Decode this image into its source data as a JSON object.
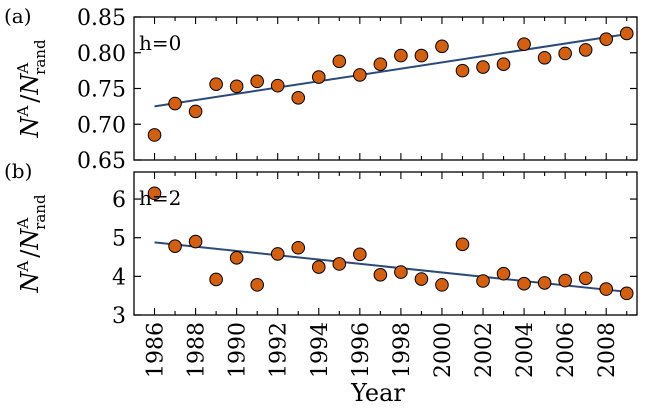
{
  "xlabel": "Year",
  "chart_data": [
    {
      "type": "scatter",
      "panel_label": "(a)",
      "annotation": "h=0",
      "ylabel": "N^A / N^A_rand",
      "ylabel_main": "N",
      "ylabel_sup": "A",
      "ylabel_slash": "/",
      "ylabel_main2": "N",
      "ylabel_sup2": "A",
      "ylabel_sub2": "rand",
      "xlim": [
        1985,
        2009.5
      ],
      "ylim": [
        0.65,
        0.85
      ],
      "yticks": [
        "0.65",
        "0.70",
        "0.75",
        "0.80",
        "0.85"
      ],
      "grid": false,
      "marker_color": "#d35f0f",
      "line_color": "#2b4a7a",
      "x": [
        1986,
        1987,
        1988,
        1989,
        1990,
        1991,
        1992,
        1993,
        1994,
        1995,
        1996,
        1997,
        1998,
        1999,
        2000,
        2001,
        2002,
        2003,
        2004,
        2005,
        2006,
        2007,
        2008,
        2009
      ],
      "y": [
        0.685,
        0.729,
        0.718,
        0.756,
        0.753,
        0.76,
        0.754,
        0.737,
        0.766,
        0.788,
        0.769,
        0.784,
        0.796,
        0.796,
        0.809,
        0.775,
        0.78,
        0.784,
        0.812,
        0.793,
        0.799,
        0.804,
        0.819,
        0.827
      ],
      "fit": {
        "x": [
          1986,
          2009
        ],
        "y": [
          0.725,
          0.826
        ]
      }
    },
    {
      "type": "scatter",
      "panel_label": "(b)",
      "annotation": "h=2",
      "ylabel": "N^A / N^A_rand",
      "ylabel_main": "N",
      "ylabel_sup": "A",
      "ylabel_slash": "/",
      "ylabel_main2": "N",
      "ylabel_sup2": "A",
      "ylabel_sub2": "rand",
      "xlim": [
        1985,
        2009.5
      ],
      "ylim": [
        3,
        6.7
      ],
      "yticks": [
        "3",
        "4",
        "5",
        "6"
      ],
      "grid": false,
      "marker_color": "#d35f0f",
      "line_color": "#2b4a7a",
      "x": [
        1986,
        1987,
        1988,
        1989,
        1990,
        1991,
        1992,
        1993,
        1994,
        1995,
        1996,
        1997,
        1998,
        1999,
        2000,
        2001,
        2002,
        2003,
        2004,
        2005,
        2006,
        2007,
        2008,
        2009
      ],
      "y": [
        6.15,
        4.78,
        4.9,
        3.92,
        4.48,
        3.78,
        4.58,
        4.74,
        4.24,
        4.32,
        4.57,
        4.04,
        4.11,
        3.93,
        3.78,
        4.83,
        3.88,
        4.07,
        3.81,
        3.83,
        3.89,
        3.95,
        3.67,
        3.56
      ],
      "fit": {
        "x": [
          1986,
          2009
        ],
        "y": [
          4.88,
          3.6
        ]
      }
    }
  ],
  "xticks": [
    "1986",
    "1988",
    "1990",
    "1992",
    "1994",
    "1996",
    "1998",
    "2000",
    "2002",
    "2004",
    "2006",
    "2008"
  ]
}
